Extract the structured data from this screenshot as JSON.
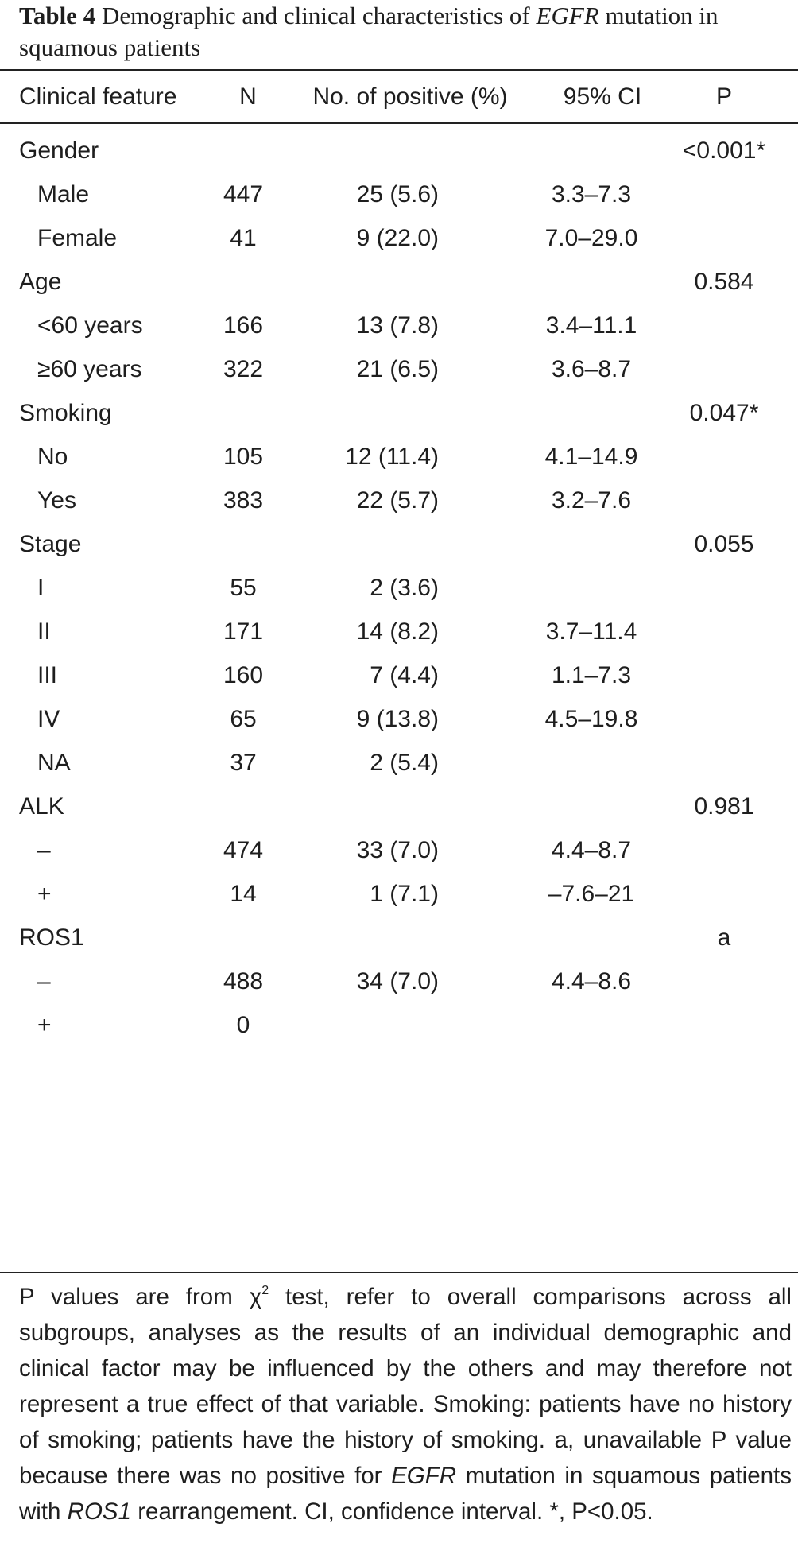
{
  "caption": {
    "label": "Table 4",
    "text_before": "Demographic and clinical characteristics of",
    "italic_term": "EGFR",
    "text_after": "mutation in squamous patients"
  },
  "table": {
    "headers": [
      "Clinical feature",
      "N",
      "No. of positive (%)",
      "95% CI",
      "P"
    ],
    "rows": [
      {
        "feature": "Gender",
        "n": "",
        "positive": "",
        "ci": "",
        "p": "<0.001*",
        "indent": false
      },
      {
        "feature": "Male",
        "n": "447",
        "positive": "25 (5.6)",
        "ci": "3.3–7.3",
        "p": "",
        "indent": true
      },
      {
        "feature": "Female",
        "n": "41",
        "positive": "9 (22.0)",
        "ci": "7.0–29.0",
        "p": "",
        "indent": true
      },
      {
        "feature": "Age",
        "n": "",
        "positive": "",
        "ci": "",
        "p": "0.584",
        "indent": false
      },
      {
        "feature": "<60 years",
        "n": "166",
        "positive": "13 (7.8)",
        "ci": "3.4–11.1",
        "p": "",
        "indent": true
      },
      {
        "feature": "≥60 years",
        "n": "322",
        "positive": "21 (6.5)",
        "ci": "3.6–8.7",
        "p": "",
        "indent": true
      },
      {
        "feature": "Smoking",
        "n": "",
        "positive": "",
        "ci": "",
        "p": "0.047*",
        "indent": false
      },
      {
        "feature": "No",
        "n": "105",
        "positive": "12 (11.4)",
        "ci": "4.1–14.9",
        "p": "",
        "indent": true
      },
      {
        "feature": "Yes",
        "n": "383",
        "positive": "22 (5.7)",
        "ci": "3.2–7.6",
        "p": "",
        "indent": true
      },
      {
        "feature": "Stage",
        "n": "",
        "positive": "",
        "ci": "",
        "p": "0.055",
        "indent": false
      },
      {
        "feature": "I",
        "n": "55",
        "positive": "2 (3.6)",
        "ci": "",
        "p": "",
        "indent": true
      },
      {
        "feature": "II",
        "n": "171",
        "positive": "14 (8.2)",
        "ci": "3.7–11.4",
        "p": "",
        "indent": true
      },
      {
        "feature": "III",
        "n": "160",
        "positive": "7 (4.4)",
        "ci": "1.1–7.3",
        "p": "",
        "indent": true
      },
      {
        "feature": "IV",
        "n": "65",
        "positive": "9 (13.8)",
        "ci": "4.5–19.8",
        "p": "",
        "indent": true
      },
      {
        "feature": "NA",
        "n": "37",
        "positive": "2 (5.4)",
        "ci": "",
        "p": "",
        "indent": true
      },
      {
        "feature": "ALK",
        "n": "",
        "positive": "",
        "ci": "",
        "p": "0.981",
        "indent": false
      },
      {
        "feature": "–",
        "n": "474",
        "positive": "33 (7.0)",
        "ci": "4.4–8.7",
        "p": "",
        "indent": true
      },
      {
        "feature": "+",
        "n": "14",
        "positive": "1 (7.1)",
        "ci": "–7.6–21",
        "p": "",
        "indent": true
      },
      {
        "feature": "ROS1",
        "n": "",
        "positive": "",
        "ci": "",
        "p": "a",
        "indent": false
      },
      {
        "feature": "–",
        "n": "488",
        "positive": "34 (7.0)",
        "ci": "4.4–8.6",
        "p": "",
        "indent": true
      },
      {
        "feature": "+",
        "n": "0",
        "positive": "",
        "ci": "",
        "p": "",
        "indent": true
      }
    ]
  },
  "footnote": {
    "p1": "P values are from ",
    "chi": "χ",
    "chi_sup": "2",
    "p2": " test, refer to overall comparisons across all subgroups, analyses as the results of an individual demographic and clinical factor may be influenced by the others and may therefore not represent a true effect of that variable. Smoking: patients have no history of smoking; patients have the history of smoking. a, unavailable P value because there was no positive for ",
    "italic1": "EGFR",
    "p3": " mutation in squamous patients with ",
    "italic2": "ROS1",
    "p4": " rearrangement. CI, confidence interval. *, P<0.05."
  }
}
